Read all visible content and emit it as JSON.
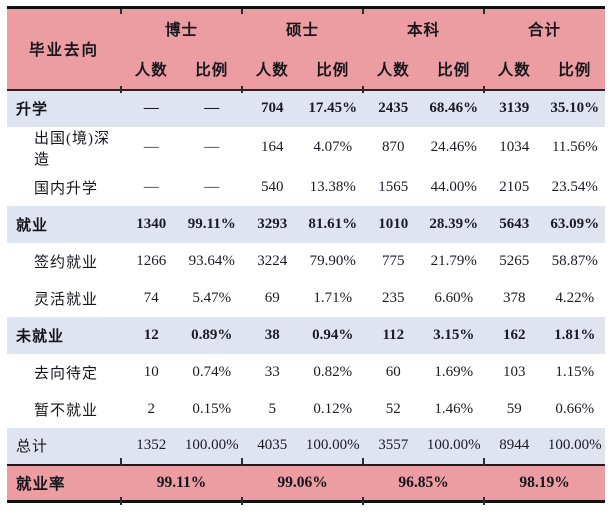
{
  "table": {
    "corner_label": "毕业去向",
    "group_headers": [
      "博士",
      "硕士",
      "本科",
      "合计"
    ],
    "sub_headers": [
      "人数",
      "比例"
    ],
    "rows": [
      {
        "label": "升学",
        "style": "group",
        "values": [
          "—",
          "—",
          "704",
          "17.45%",
          "2435",
          "68.46%",
          "3139",
          "35.10%"
        ]
      },
      {
        "label": "出国(境)深造",
        "style": "sub",
        "values": [
          "—",
          "—",
          "164",
          "4.07%",
          "870",
          "24.46%",
          "1034",
          "11.56%"
        ]
      },
      {
        "label": "国内升学",
        "style": "sub",
        "values": [
          "—",
          "—",
          "540",
          "13.38%",
          "1565",
          "44.00%",
          "2105",
          "23.54%"
        ]
      },
      {
        "label": "就业",
        "style": "group",
        "values": [
          "1340",
          "99.11%",
          "3293",
          "81.61%",
          "1010",
          "28.39%",
          "5643",
          "63.09%"
        ]
      },
      {
        "label": "签约就业",
        "style": "sub",
        "values": [
          "1266",
          "93.64%",
          "3224",
          "79.90%",
          "775",
          "21.79%",
          "5265",
          "58.87%"
        ]
      },
      {
        "label": "灵活就业",
        "style": "sub",
        "values": [
          "74",
          "5.47%",
          "69",
          "1.71%",
          "235",
          "6.60%",
          "378",
          "4.22%"
        ]
      },
      {
        "label": "未就业",
        "style": "group",
        "values": [
          "12",
          "0.89%",
          "38",
          "0.94%",
          "112",
          "3.15%",
          "162",
          "1.81%"
        ]
      },
      {
        "label": "去向待定",
        "style": "sub",
        "values": [
          "10",
          "0.74%",
          "33",
          "0.82%",
          "60",
          "1.69%",
          "103",
          "1.15%"
        ]
      },
      {
        "label": "暂不就业",
        "style": "sub",
        "values": [
          "2",
          "0.15%",
          "5",
          "0.12%",
          "52",
          "1.46%",
          "59",
          "0.66%"
        ]
      },
      {
        "label": "总计",
        "style": "total",
        "values": [
          "1352",
          "100.00%",
          "4035",
          "100.00%",
          "3557",
          "100.00%",
          "8944",
          "100.00%"
        ]
      }
    ],
    "footer": {
      "label": "就业率",
      "values": [
        "99.11%",
        "99.06%",
        "96.85%",
        "98.19%"
      ]
    }
  },
  "colors": {
    "header_bg": "#eb9da1",
    "band_bg": "#e0e4f0",
    "border": "#111111",
    "text": "#1b1b26"
  }
}
